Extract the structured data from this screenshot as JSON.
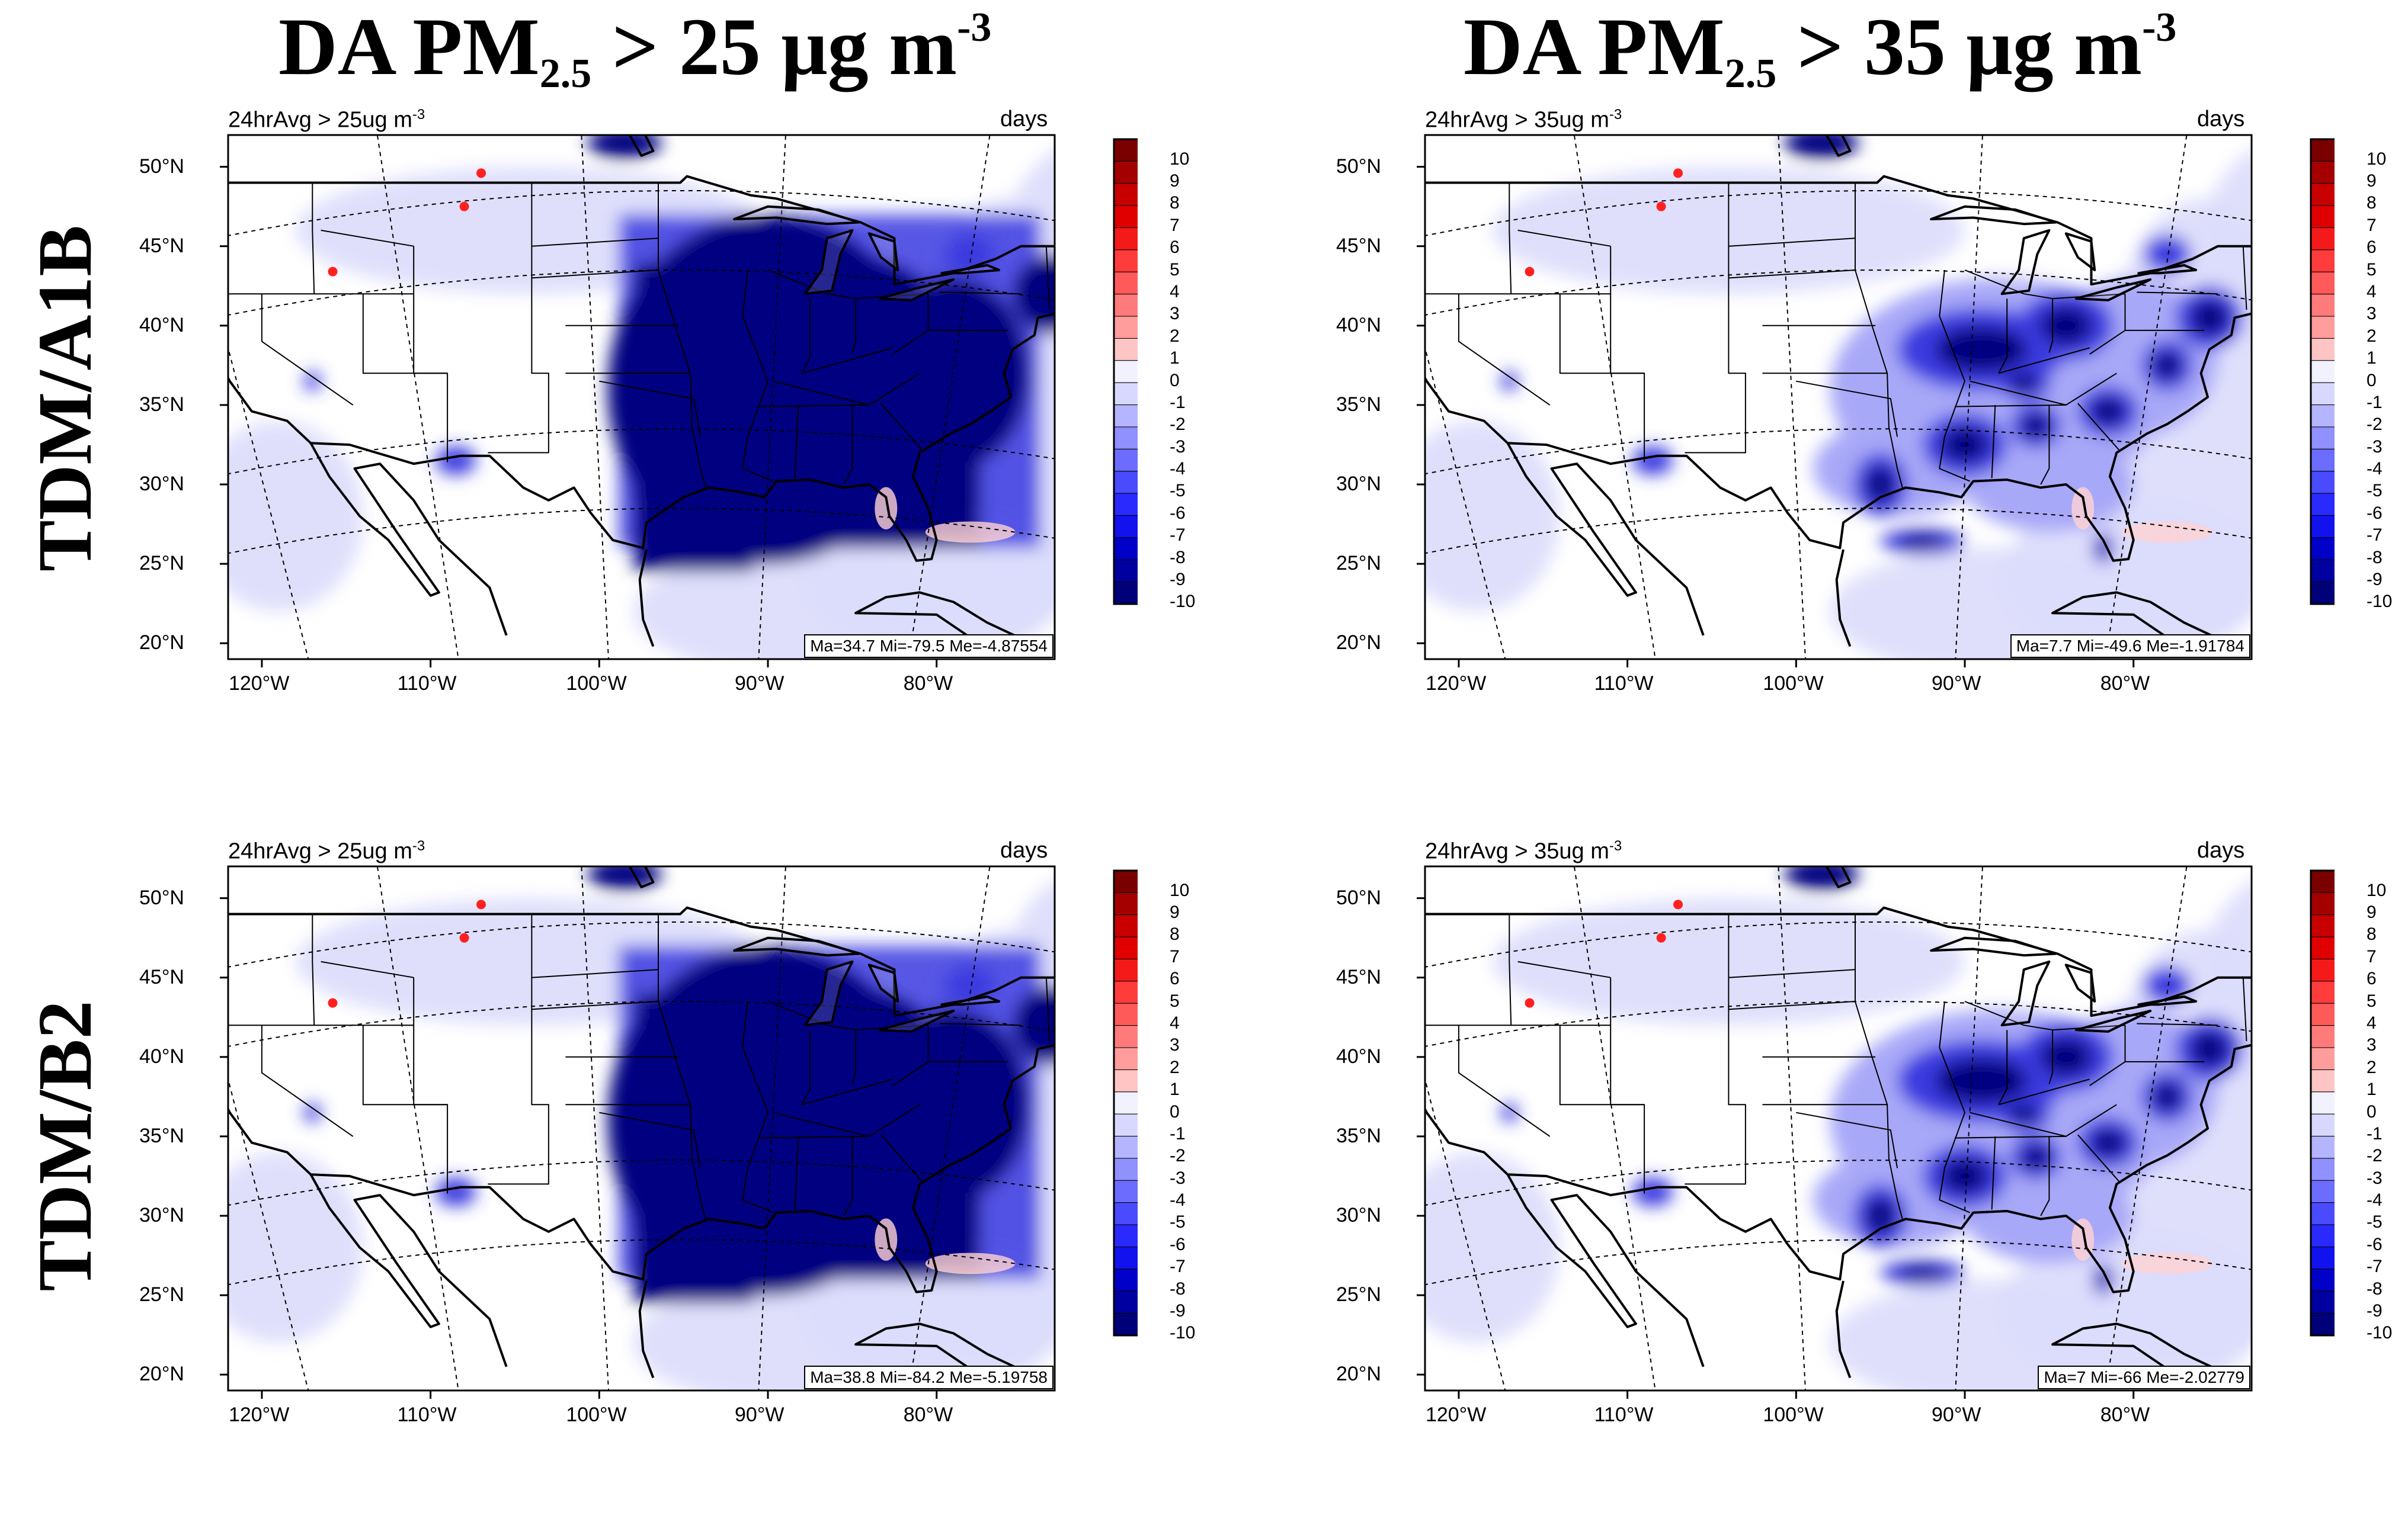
{
  "column_titles": [
    {
      "prefix": "DA PM",
      "sub": "2.5",
      "mid": " > 25 μg m",
      "sup": "-3"
    },
    {
      "prefix": "DA PM",
      "sub": "2.5",
      "mid": " > 35 μg m",
      "sup": "-3"
    }
  ],
  "row_titles": [
    "TDM/A1B",
    "TDM/B2"
  ],
  "chart_data": [
    {
      "type": "heatmap",
      "scenario": "TDM/A1B",
      "threshold": "> 25 μg m-3",
      "title_left": "24hrAvg > 25ug m",
      "title_left_sup": "-3",
      "title_right": "days",
      "stats": "Ma=34.7 Mi=-79.5 Me=-4.87554",
      "ylabels": [
        "50°N",
        "45°N",
        "40°N",
        "35°N",
        "30°N",
        "25°N",
        "20°N"
      ],
      "xlabels": [
        "120°W",
        "110°W",
        "100°W",
        "90°W",
        "80°W"
      ],
      "xlim": [
        -122,
        -73
      ],
      "ylim": [
        19,
        52
      ],
      "intensity": "strong"
    },
    {
      "type": "heatmap",
      "scenario": "TDM/A1B",
      "threshold": "> 35 μg m-3",
      "title_left": "24hrAvg > 35ug m",
      "title_left_sup": "-3",
      "title_right": "days",
      "stats": "Ma=7.7 Mi=-49.6 Me=-1.91784",
      "ylabels": [
        "50°N",
        "45°N",
        "40°N",
        "35°N",
        "30°N",
        "25°N",
        "20°N"
      ],
      "xlabels": [
        "120°W",
        "110°W",
        "100°W",
        "90°W",
        "80°W"
      ],
      "xlim": [
        -122,
        -73
      ],
      "ylim": [
        19,
        52
      ],
      "intensity": "moderate"
    },
    {
      "type": "heatmap",
      "scenario": "TDM/B2",
      "threshold": "> 25 μg m-3",
      "title_left": "24hrAvg > 25ug m",
      "title_left_sup": "-3",
      "title_right": "days",
      "stats": "Ma=38.8 Mi=-84.2 Me=-5.19758",
      "ylabels": [
        "50°N",
        "45°N",
        "40°N",
        "35°N",
        "30°N",
        "25°N",
        "20°N"
      ],
      "xlabels": [
        "120°W",
        "110°W",
        "100°W",
        "90°W",
        "80°W"
      ],
      "xlim": [
        -122,
        -73
      ],
      "ylim": [
        19,
        52
      ],
      "intensity": "strong"
    },
    {
      "type": "heatmap",
      "scenario": "TDM/B2",
      "threshold": "> 35 μg m-3",
      "title_left": "24hrAvg > 35ug m",
      "title_left_sup": "-3",
      "title_right": "days",
      "stats": "Ma=7 Mi=-66 Me=-2.02779",
      "ylabels": [
        "50°N",
        "45°N",
        "40°N",
        "35°N",
        "30°N",
        "25°N",
        "20°N"
      ],
      "xlabels": [
        "120°W",
        "110°W",
        "100°W",
        "90°W",
        "80°W"
      ],
      "xlim": [
        -122,
        -73
      ],
      "ylim": [
        19,
        52
      ],
      "intensity": "moderate"
    }
  ],
  "colorbar": {
    "labels": [
      "10",
      "9",
      "8",
      "7",
      "6",
      "5",
      "4",
      "3",
      "2",
      "1",
      "0",
      "-1",
      "-2",
      "-3",
      "-4",
      "-5",
      "-6",
      "-7",
      "-8",
      "-9",
      "-10"
    ],
    "colors": [
      "#7a0000",
      "#a50000",
      "#c80000",
      "#e00000",
      "#f41a1a",
      "#ff3c3c",
      "#ff5a5a",
      "#ff7a7a",
      "#ff9c9c",
      "#ffc4c4",
      "#f2f2ff",
      "#d8d8ff",
      "#b4b4ff",
      "#9090ff",
      "#6c6cff",
      "#4a4aff",
      "#2a2aff",
      "#1212ee",
      "#0000c8",
      "#0000a0",
      "#000078"
    ]
  },
  "colors": {
    "strong": "#000080",
    "mid": "#3a3ae0",
    "light": "#a8a8f8",
    "pale": "#dcdcfc",
    "red": "#ff2020",
    "pink": "#ffd2d2"
  }
}
